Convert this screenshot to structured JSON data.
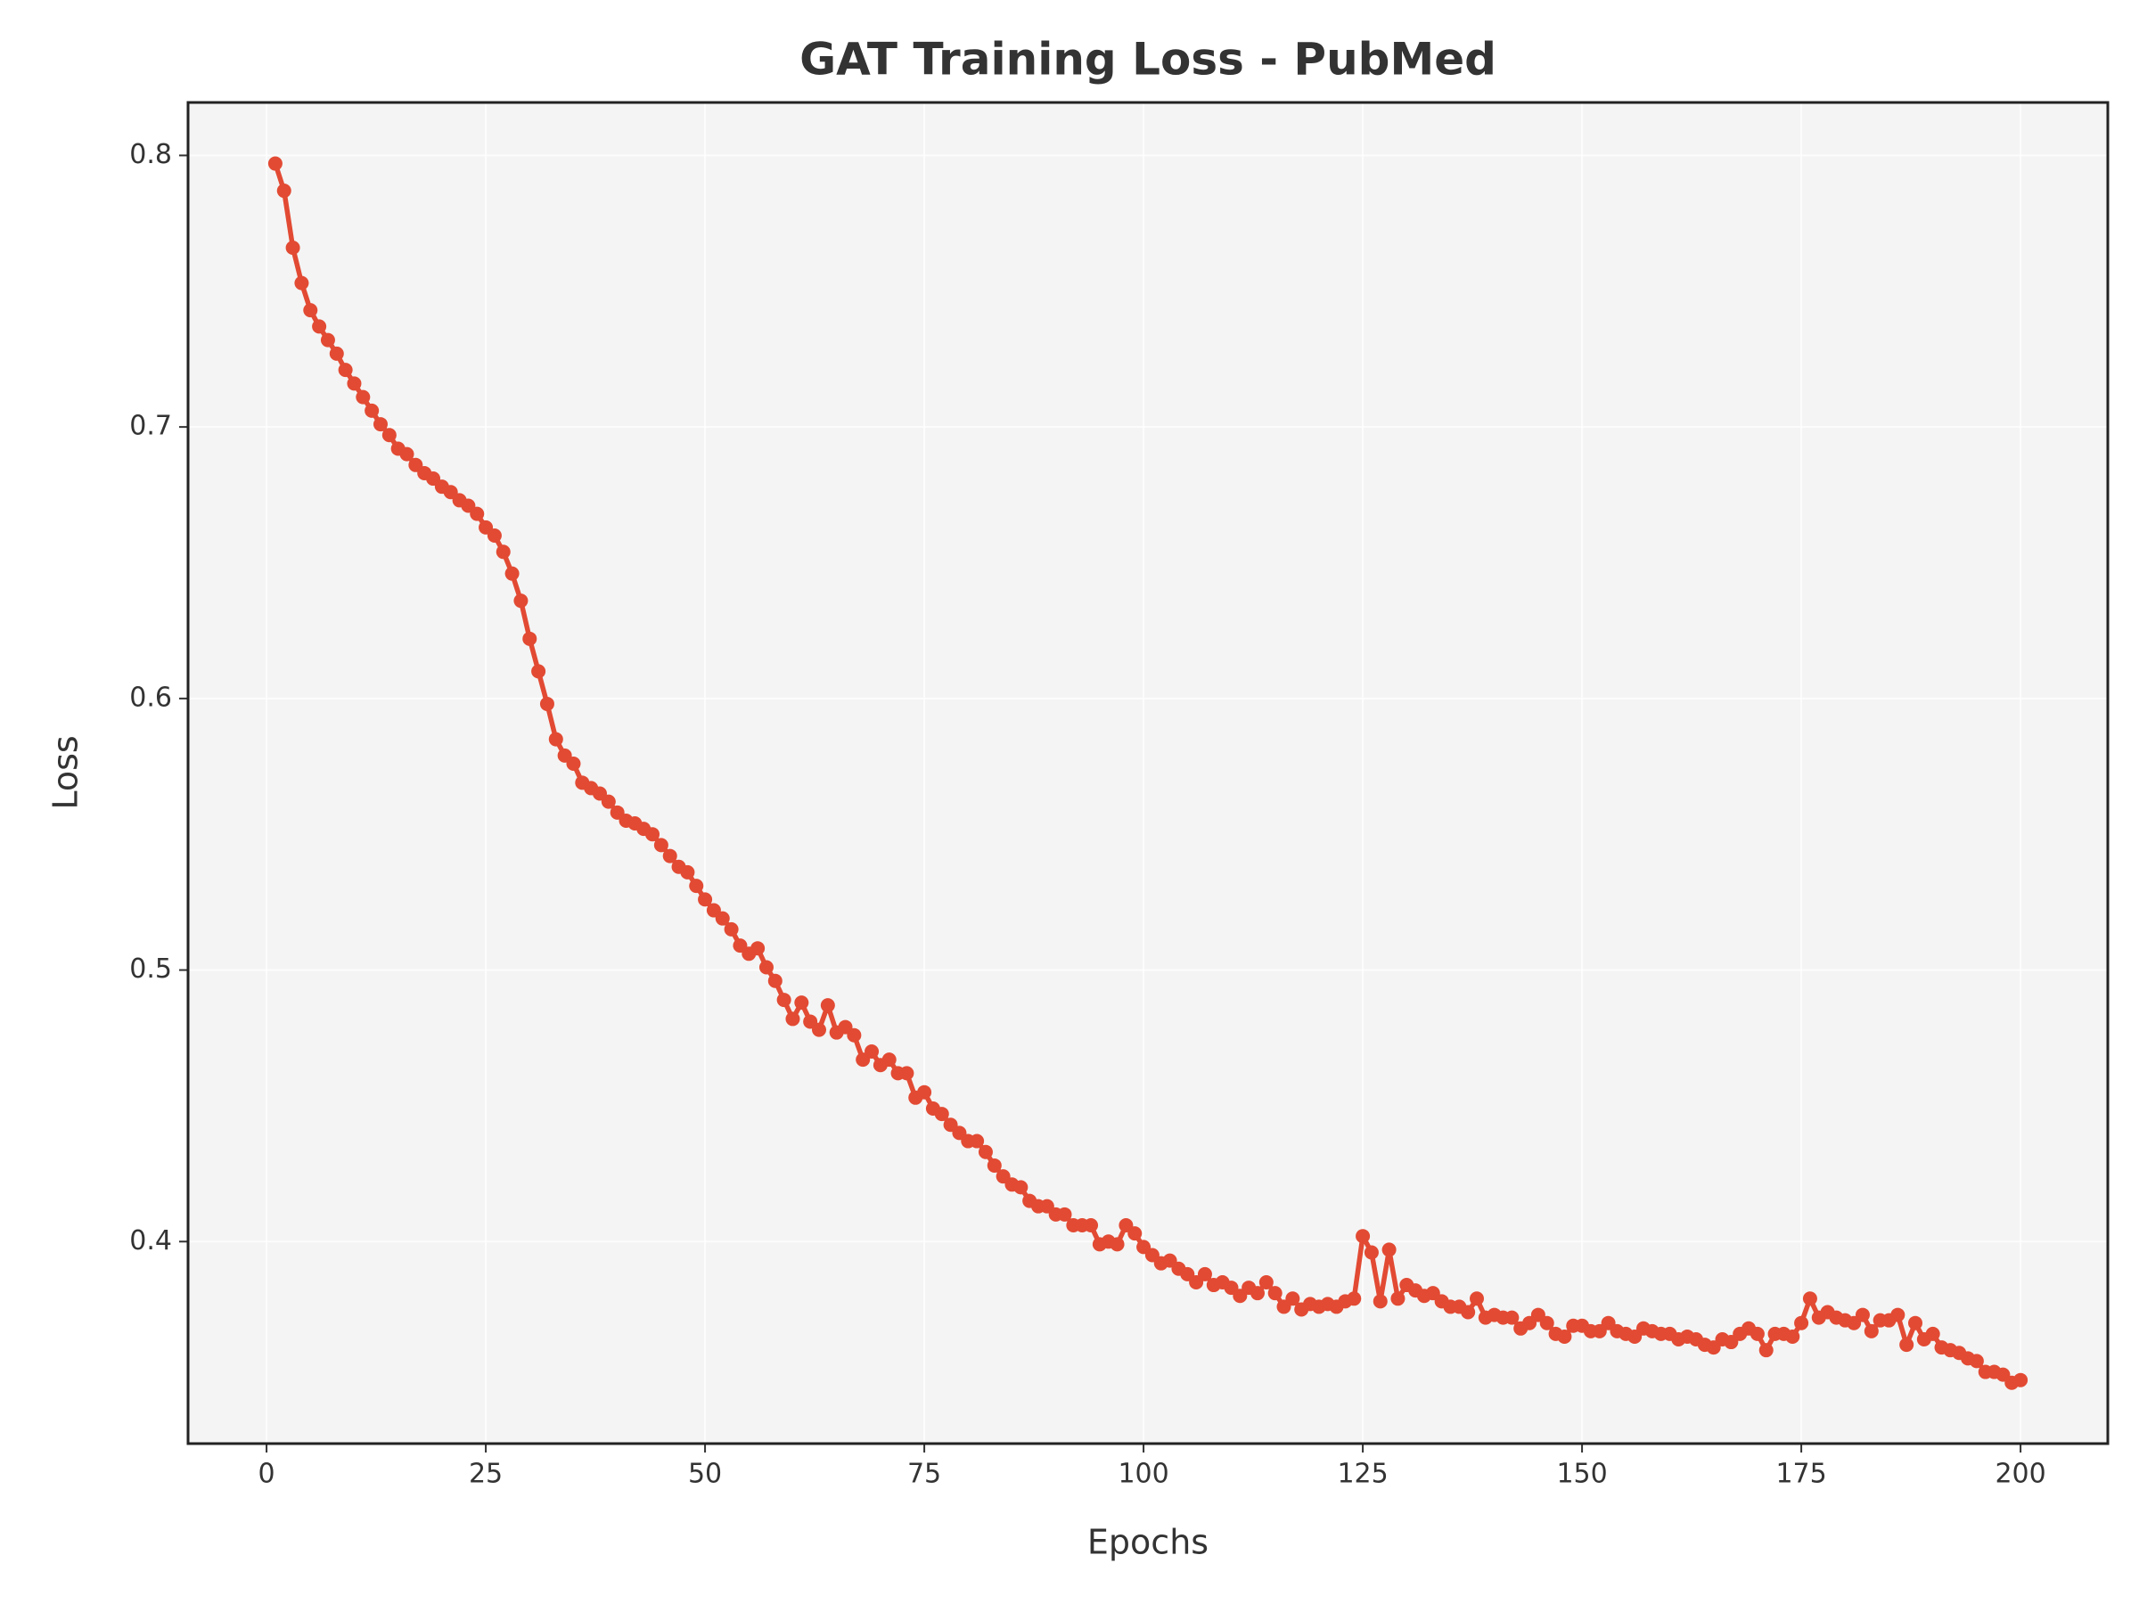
{
  "chart_data": {
    "type": "line",
    "title": "GAT Training Loss - PubMed",
    "xlabel": "Epochs",
    "ylabel": "Loss",
    "x": [
      1,
      2,
      3,
      4,
      5,
      6,
      7,
      8,
      9,
      10,
      11,
      12,
      13,
      14,
      15,
      16,
      17,
      18,
      19,
      20,
      21,
      22,
      23,
      24,
      25,
      26,
      27,
      28,
      29,
      30,
      31,
      32,
      33,
      34,
      35,
      36,
      37,
      38,
      39,
      40,
      41,
      42,
      43,
      44,
      45,
      46,
      47,
      48,
      49,
      50,
      51,
      52,
      53,
      54,
      55,
      56,
      57,
      58,
      59,
      60,
      61,
      62,
      63,
      64,
      65,
      66,
      67,
      68,
      69,
      70,
      71,
      72,
      73,
      74,
      75,
      76,
      77,
      78,
      79,
      80,
      81,
      82,
      83,
      84,
      85,
      86,
      87,
      88,
      89,
      90,
      91,
      92,
      93,
      94,
      95,
      96,
      97,
      98,
      99,
      100,
      101,
      102,
      103,
      104,
      105,
      106,
      107,
      108,
      109,
      110,
      111,
      112,
      113,
      114,
      115,
      116,
      117,
      118,
      119,
      120,
      121,
      122,
      123,
      124,
      125,
      126,
      127,
      128,
      129,
      130,
      131,
      132,
      133,
      134,
      135,
      136,
      137,
      138,
      139,
      140,
      141,
      142,
      143,
      144,
      145,
      146,
      147,
      148,
      149,
      150,
      151,
      152,
      153,
      154,
      155,
      156,
      157,
      158,
      159,
      160,
      161,
      162,
      163,
      164,
      165,
      166,
      167,
      168,
      169,
      170,
      171,
      172,
      173,
      174,
      175,
      176,
      177,
      178,
      179,
      180,
      181,
      182,
      183,
      184,
      185,
      186,
      187,
      188,
      189,
      190,
      191,
      192,
      193,
      194,
      195,
      196,
      197,
      198,
      199,
      200
    ],
    "series": [
      {
        "name": "Loss",
        "color": "#e24a33",
        "values": [
          0.797,
          0.787,
          0.766,
          0.753,
          0.743,
          0.737,
          0.732,
          0.727,
          0.721,
          0.716,
          0.711,
          0.706,
          0.701,
          0.697,
          0.692,
          0.69,
          0.686,
          0.683,
          0.681,
          0.678,
          0.676,
          0.673,
          0.671,
          0.668,
          0.663,
          0.66,
          0.654,
          0.646,
          0.636,
          0.622,
          0.61,
          0.598,
          0.585,
          0.579,
          0.576,
          0.569,
          0.567,
          0.565,
          0.562,
          0.558,
          0.555,
          0.554,
          0.552,
          0.55,
          0.546,
          0.542,
          0.538,
          0.536,
          0.531,
          0.526,
          0.522,
          0.519,
          0.515,
          0.509,
          0.506,
          0.508,
          0.501,
          0.496,
          0.489,
          0.482,
          0.488,
          0.481,
          0.478,
          0.487,
          0.477,
          0.479,
          0.476,
          0.467,
          0.47,
          0.465,
          0.467,
          0.462,
          0.462,
          0.453,
          0.455,
          0.449,
          0.447,
          0.443,
          0.44,
          0.437,
          0.437,
          0.433,
          0.428,
          0.424,
          0.421,
          0.42,
          0.415,
          0.413,
          0.413,
          0.41,
          0.41,
          0.406,
          0.406,
          0.406,
          0.399,
          0.4,
          0.399,
          0.406,
          0.403,
          0.398,
          0.395,
          0.392,
          0.393,
          0.39,
          0.388,
          0.385,
          0.388,
          0.384,
          0.385,
          0.383,
          0.38,
          0.383,
          0.381,
          0.385,
          0.381,
          0.376,
          0.379,
          0.375,
          0.377,
          0.376,
          0.377,
          0.376,
          0.378,
          0.379,
          0.402,
          0.396,
          0.378,
          0.397,
          0.379,
          0.384,
          0.382,
          0.38,
          0.381,
          0.378,
          0.376,
          0.376,
          0.374,
          0.379,
          0.372,
          0.373,
          0.372,
          0.372,
          0.368,
          0.37,
          0.373,
          0.37,
          0.366,
          0.365,
          0.369,
          0.369,
          0.367,
          0.367,
          0.37,
          0.367,
          0.366,
          0.365,
          0.368,
          0.367,
          0.366,
          0.366,
          0.364,
          0.365,
          0.364,
          0.362,
          0.361,
          0.364,
          0.363,
          0.366,
          0.368,
          0.366,
          0.36,
          0.366,
          0.366,
          0.365,
          0.37,
          0.379,
          0.372,
          0.374,
          0.372,
          0.371,
          0.37,
          0.373,
          0.367,
          0.371,
          0.371,
          0.373,
          0.362,
          0.37,
          0.364,
          0.366,
          0.361,
          0.36,
          0.359,
          0.357,
          0.356,
          0.352,
          0.352,
          0.351,
          0.348,
          0.349
        ]
      }
    ],
    "xlim": [
      -8.95,
      209.95
    ],
    "ylim": [
      0.3256,
      0.8195
    ],
    "xticks": [
      0,
      25,
      50,
      75,
      100,
      125,
      150,
      175,
      200
    ],
    "yticks": [
      0.4,
      0.5,
      0.6,
      0.7,
      0.8
    ],
    "grid": true
  }
}
